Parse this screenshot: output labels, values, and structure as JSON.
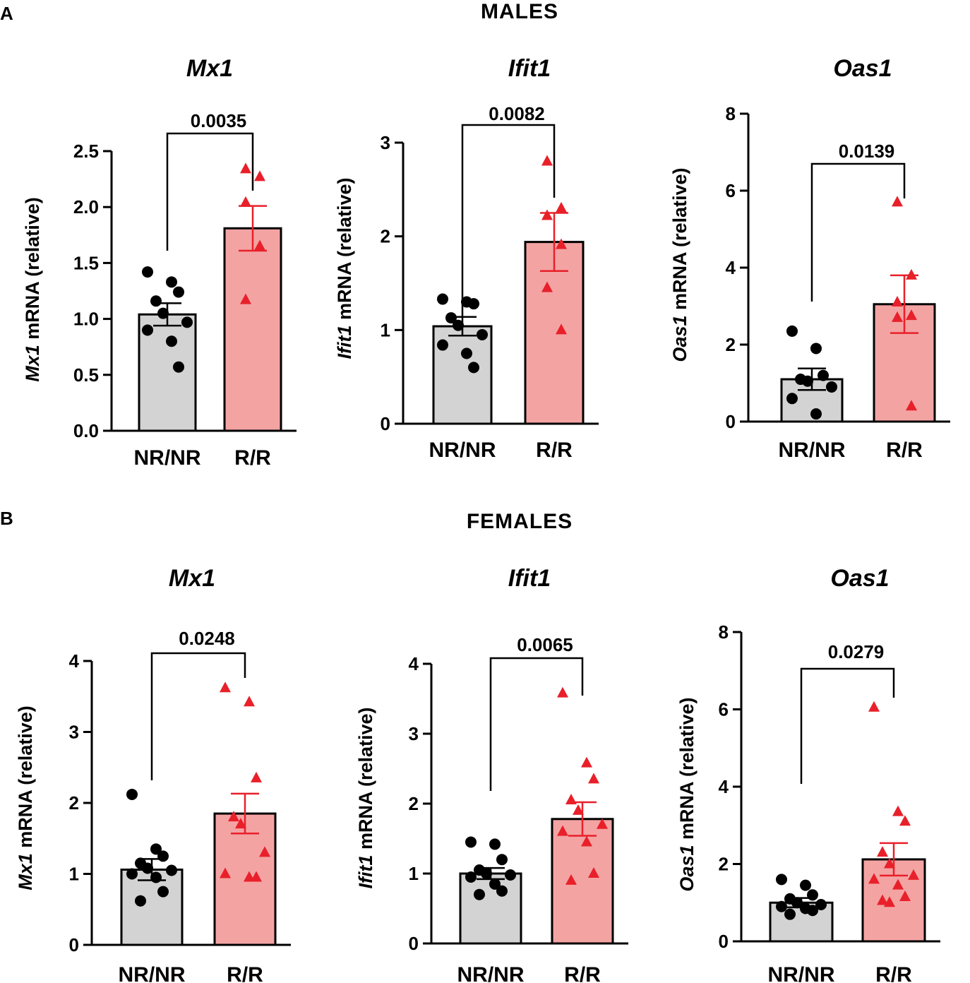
{
  "figure": {
    "panels": [
      {
        "letter": "A",
        "title": "MALES"
      },
      {
        "letter": "B",
        "title": "FEMALES"
      }
    ]
  },
  "colors": {
    "nr_bar": "#d3d3d3",
    "r_bar": "#f4a3a3",
    "nr_point": "#000000",
    "r_point": "#e8202a",
    "axis": "#000000"
  },
  "chart_data": [
    {
      "type": "bar",
      "panel": "A",
      "title": "Mx1",
      "ylabel_gene": "Mx1",
      "ylabel_rest": " mRNA (relative)",
      "categories": [
        "NR/NR",
        "R/R"
      ],
      "ylim": [
        0,
        2.5
      ],
      "yticks": [
        0,
        0.5,
        1,
        1.5,
        2,
        2.5
      ],
      "ytick_labels": [
        "0.0",
        "0.5",
        "1.0",
        "1.5",
        "2.0",
        "2.5"
      ],
      "means": [
        1.04,
        1.81
      ],
      "sem": [
        0.1,
        0.2
      ],
      "points": [
        [
          1.42,
          1.33,
          1.24,
          1.16,
          1.05,
          0.97,
          0.9,
          0.8,
          0.57
        ],
        [
          2.34,
          2.27,
          2.04,
          1.65,
          1.17
        ]
      ],
      "pvalue": "0.0035"
    },
    {
      "type": "bar",
      "panel": "A",
      "title": "Ifit1",
      "ylabel_gene": "Ifit1",
      "ylabel_rest": "  mRNA (relative)",
      "categories": [
        "NR/NR",
        "R/R"
      ],
      "ylim": [
        0,
        3
      ],
      "yticks": [
        0,
        1,
        2,
        3
      ],
      "ytick_labels": [
        "0",
        "1",
        "2",
        "3"
      ],
      "means": [
        1.04,
        1.94
      ],
      "sem": [
        0.1,
        0.31
      ],
      "points": [
        [
          1.33,
          1.3,
          1.28,
          1.13,
          1.05,
          0.95,
          0.84,
          0.75,
          0.6
        ],
        [
          2.8,
          2.3,
          2.22,
          1.91,
          1.45,
          1.0
        ]
      ],
      "pvalue": "0.0082"
    },
    {
      "type": "bar",
      "panel": "A",
      "title": "Oas1",
      "ylabel_gene": "Oas1",
      "ylabel_rest": " mRNA (relative)",
      "categories": [
        "NR/NR",
        "R/R"
      ],
      "ylim": [
        0,
        8
      ],
      "yticks": [
        0,
        2,
        4,
        6,
        8
      ],
      "ytick_labels": [
        "0",
        "2",
        "4",
        "6",
        "8"
      ],
      "means": [
        1.1,
        3.05
      ],
      "sem": [
        0.28,
        0.75
      ],
      "points": [
        [
          2.35,
          1.9,
          1.2,
          1.1,
          1.05,
          0.9,
          0.6,
          0.2
        ],
        [
          5.7,
          3.8,
          3.1,
          2.75,
          2.7,
          0.4
        ]
      ],
      "pvalue": "0.0139"
    },
    {
      "type": "bar",
      "panel": "B",
      "title": "Mx1",
      "ylabel_gene": "Mx1",
      "ylabel_rest": " mRNA (relative)",
      "categories": [
        "NR/NR",
        "R/R"
      ],
      "ylim": [
        0,
        4
      ],
      "yticks": [
        0,
        1,
        2,
        3,
        4
      ],
      "ytick_labels": [
        "0",
        "1",
        "2",
        "3",
        "4"
      ],
      "means": [
        1.06,
        1.85
      ],
      "sem": [
        0.15,
        0.28
      ],
      "points": [
        [
          2.12,
          1.35,
          1.25,
          1.15,
          1.08,
          1.05,
          1.0,
          0.95,
          0.75,
          0.62
        ],
        [
          3.62,
          3.42,
          2.35,
          1.8,
          1.7,
          1.3,
          1.0,
          0.95,
          0.95
        ]
      ],
      "pvalue": "0.0248"
    },
    {
      "type": "bar",
      "panel": "B",
      "title": "Ifit1",
      "ylabel_gene": "Ifit1",
      "ylabel_rest": "  mRNA (relative)",
      "categories": [
        "NR/NR",
        "R/R"
      ],
      "ylim": [
        0,
        4
      ],
      "yticks": [
        0,
        1,
        2,
        3,
        4
      ],
      "ytick_labels": [
        "0",
        "1",
        "2",
        "3",
        "4"
      ],
      "means": [
        1.0,
        1.78
      ],
      "sem": [
        0.08,
        0.24
      ],
      "points": [
        [
          1.45,
          1.42,
          1.2,
          1.05,
          1.0,
          0.98,
          0.95,
          0.85,
          0.75,
          0.7
        ],
        [
          3.58,
          2.58,
          2.35,
          2.05,
          1.9,
          1.7,
          1.6,
          1.45,
          1.0,
          0.9
        ]
      ],
      "pvalue": "0.0065"
    },
    {
      "type": "bar",
      "panel": "B",
      "title": "Oas1",
      "ylabel_gene": "Oas1",
      "ylabel_rest": " mRNA (relative)",
      "categories": [
        "NR/NR",
        "R/R"
      ],
      "ylim": [
        0,
        8
      ],
      "yticks": [
        0,
        2,
        4,
        6,
        8
      ],
      "ytick_labels": [
        "0",
        "2",
        "4",
        "6",
        "8"
      ],
      "means": [
        1.0,
        2.12
      ],
      "sem": [
        0.12,
        0.42
      ],
      "points": [
        [
          1.6,
          1.45,
          1.2,
          1.1,
          1.0,
          0.95,
          0.9,
          0.85,
          0.8,
          0.7
        ],
        [
          6.05,
          3.35,
          3.1,
          2.3,
          2.0,
          1.7,
          1.6,
          1.45,
          1.15,
          1.05,
          1.0
        ]
      ],
      "pvalue": "0.0279"
    }
  ]
}
